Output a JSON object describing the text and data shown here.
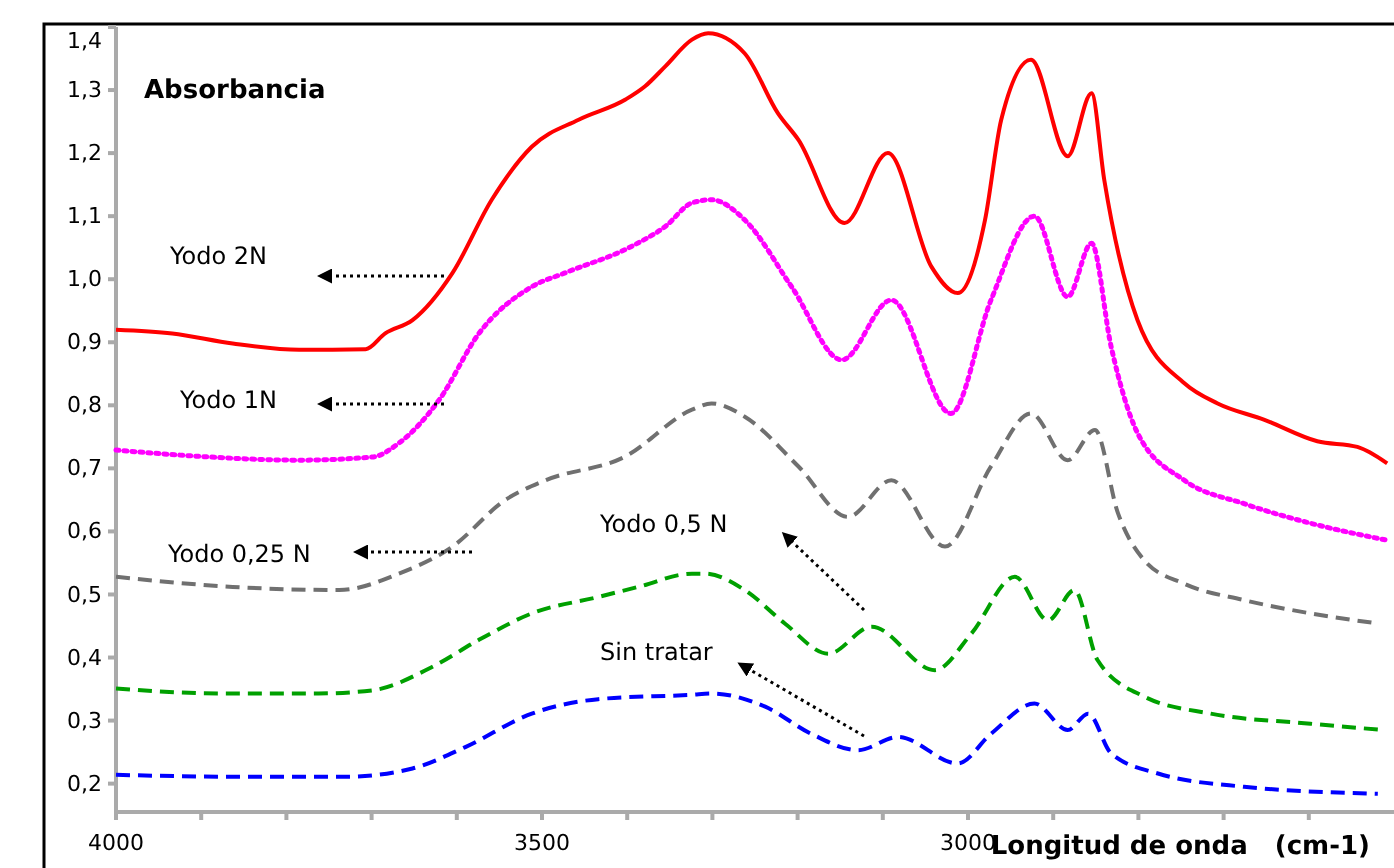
{
  "chart_data": {
    "type": "line",
    "ylabel": "Absorbancia",
    "xlabel": "Longitud de onda   (cm-1)",
    "xlim": [
      4000,
      2500
    ],
    "ylim": [
      0.155,
      1.4
    ],
    "xticks": [
      4000,
      {
        "value": 3900,
        "label": null
      },
      {
        "value": 3800,
        "label": null
      },
      {
        "value": 3700,
        "label": null
      },
      {
        "value": 3600,
        "label": null
      },
      3500,
      {
        "value": 3400,
        "label": null
      },
      {
        "value": 3300,
        "label": null
      },
      {
        "value": 3200,
        "label": null
      },
      {
        "value": 3100,
        "label": null
      },
      3000,
      {
        "value": 2900,
        "label": null
      },
      {
        "value": 2800,
        "label": null
      },
      {
        "value": 2700,
        "label": null
      },
      {
        "value": 2600,
        "label": null
      }
    ],
    "yticks": [
      {
        "value": 0.2,
        "label": "0,2"
      },
      {
        "value": 0.3,
        "label": "0,3"
      },
      {
        "value": 0.4,
        "label": "0,4"
      },
      {
        "value": 0.5,
        "label": "0,5"
      },
      {
        "value": 0.6,
        "label": "0,6"
      },
      {
        "value": 0.7,
        "label": "0,7"
      },
      {
        "value": 0.8,
        "label": "0,8"
      },
      {
        "value": 0.9,
        "label": "0,9"
      },
      {
        "value": 1.0,
        "label": "1,0"
      },
      {
        "value": 1.1,
        "label": "1,1"
      },
      {
        "value": 1.2,
        "label": "1,2"
      },
      {
        "value": 1.3,
        "label": "1,3"
      },
      {
        "value": 1.4,
        "label": "1,4"
      }
    ],
    "grid": false,
    "legend": false,
    "marker": "none",
    "series": [
      {
        "name": "Yodo 2N",
        "color": "#ff0000",
        "line_style": "solid",
        "x": [
          4000,
          3934,
          3863,
          3785,
          3707,
          3684,
          3652,
          3605,
          3559,
          3512,
          3457,
          3402,
          3379,
          3355,
          3324,
          3305,
          3262,
          3223,
          3199,
          3145,
          3094,
          3043,
          3012,
          2980,
          2961,
          2926,
          2883,
          2855,
          2840,
          2801,
          2746,
          2707,
          2652,
          2590,
          2543,
          2508
        ],
        "values": [
          0.92,
          0.914,
          0.898,
          0.888,
          0.889,
          0.914,
          0.935,
          1.01,
          1.126,
          1.21,
          1.253,
          1.285,
          1.306,
          1.338,
          1.38,
          1.39,
          1.358,
          1.263,
          1.221,
          1.089,
          1.2,
          1.02,
          0.978,
          1.094,
          1.253,
          1.348,
          1.195,
          1.295,
          1.157,
          0.935,
          0.835,
          0.803,
          0.777,
          0.743,
          0.734,
          0.708
        ]
      },
      {
        "name": "Yodo 1N",
        "color": "#ff00ff",
        "line_style": "dotted",
        "x": [
          4000,
          3902,
          3785,
          3699,
          3668,
          3621,
          3574,
          3512,
          3473,
          3395,
          3355,
          3324,
          3301,
          3262,
          3207,
          3148,
          3090,
          3020,
          2973,
          2922,
          2883,
          2855,
          2832,
          2801,
          2746,
          2676,
          2598,
          2508
        ],
        "values": [
          0.729,
          0.719,
          0.713,
          0.718,
          0.74,
          0.808,
          0.914,
          0.988,
          1.01,
          1.052,
          1.084,
          1.121,
          1.126,
          1.094,
          0.988,
          0.872,
          0.967,
          0.787,
          0.967,
          1.1,
          0.972,
          1.057,
          0.893,
          0.756,
          0.681,
          0.644,
          0.613,
          0.586
        ]
      },
      {
        "name": "Yodo 0,25 N",
        "color": "#707070",
        "line_style": "dashed",
        "x": [
          4000,
          3863,
          3738,
          3668,
          3605,
          3543,
          3496,
          3402,
          3324,
          3301,
          3262,
          3199,
          3141,
          3090,
          3027,
          2973,
          2926,
          2883,
          2851,
          2824,
          2793,
          2746,
          2676,
          2598,
          2519
        ],
        "values": [
          0.528,
          0.512,
          0.507,
          0.533,
          0.576,
          0.65,
          0.681,
          0.719,
          0.793,
          0.803,
          0.782,
          0.703,
          0.623,
          0.681,
          0.576,
          0.703,
          0.787,
          0.713,
          0.761,
          0.629,
          0.554,
          0.517,
          0.491,
          0.47,
          0.454
        ]
      },
      {
        "name": "Yodo 0,5 N",
        "color": "#00a000",
        "line_style": "dashed",
        "x": [
          4000,
          3879,
          3762,
          3699,
          3629,
          3574,
          3512,
          3434,
          3387,
          3324,
          3309,
          3262,
          3215,
          3164,
          3113,
          3039,
          2996,
          2945,
          2906,
          2875,
          2848,
          2793,
          2715,
          2598,
          2512
        ],
        "values": [
          0.351,
          0.343,
          0.343,
          0.348,
          0.385,
          0.428,
          0.47,
          0.496,
          0.512,
          0.533,
          0.533,
          0.507,
          0.454,
          0.406,
          0.449,
          0.38,
          0.438,
          0.528,
          0.459,
          0.507,
          0.396,
          0.338,
          0.311,
          0.295,
          0.285
        ]
      },
      {
        "name": "Sin tratar",
        "color": "#0000ff",
        "line_style": "dashed",
        "x": [
          4000,
          3863,
          3730,
          3652,
          3590,
          3512,
          3434,
          3324,
          3301,
          3238,
          3184,
          3129,
          3082,
          3012,
          2973,
          2922,
          2883,
          2859,
          2832,
          2777,
          2676,
          2519
        ],
        "values": [
          0.214,
          0.211,
          0.211,
          0.224,
          0.258,
          0.311,
          0.334,
          0.341,
          0.343,
          0.322,
          0.279,
          0.253,
          0.274,
          0.232,
          0.279,
          0.327,
          0.285,
          0.311,
          0.248,
          0.216,
          0.195,
          0.184
        ]
      }
    ]
  }
}
